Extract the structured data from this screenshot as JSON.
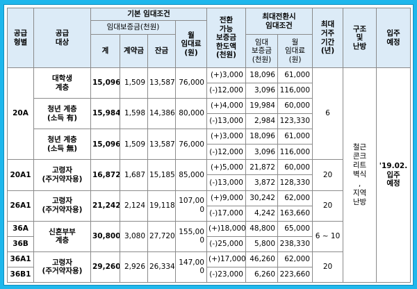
{
  "header": {
    "supply_type": "공급\n형별",
    "supply_target": "공급\n대상",
    "basic_conditions": "기본 임대조건",
    "deposit": "임대보증금(천원)",
    "total": "계",
    "contract": "계약금",
    "balance": "잔금",
    "monthly_rent": "월\n임대료\n(원)",
    "convertible": "전환\n가능\n보증금\n한도액\n(천원)",
    "max_conversion": "최대전환시\n임대조건",
    "conv_deposit": "임대\n보증금\n(천원)",
    "conv_rent": "월\n임대료\n(원)",
    "max_period": "최대\n거주\n기간\n(년)",
    "structure": "구조\n및\n난방",
    "move_in": "입주\n예정"
  },
  "structure_text": "철근\n콘크\n리트\n벽식\n,\n지역\n난방",
  "move_in_text": "'19.02.\n입주\n예정",
  "rows": [
    {
      "type": "20A",
      "target": "대학생\n계층",
      "total": "15,096",
      "contract": "1,509",
      "balance": "13,587",
      "rent": "76,000",
      "c1": "(+)3,000",
      "d1": "18,096",
      "r1": "61,000",
      "c2": "(-)12,000",
      "d2": "3,096",
      "r2": "116,000"
    },
    {
      "type": "",
      "target": "청년 계층\n(소득 有)",
      "total": "15,984",
      "contract": "1,598",
      "balance": "14,386",
      "rent": "80,000",
      "c1": "(+)4,000",
      "d1": "19,984",
      "r1": "60,000",
      "c2": "(-)13,000",
      "d2": "2,984",
      "r2": "123,330"
    },
    {
      "type": "",
      "target": "청년 계층\n(소득 無)",
      "total": "15,096",
      "contract": "1,509",
      "balance": "13,587",
      "rent": "76,000",
      "c1": "(+)3,000",
      "d1": "18,096",
      "r1": "61,000",
      "c2": "(-)12,000",
      "d2": "3,096",
      "r2": "116,000"
    },
    {
      "type": "20A1",
      "target": "고령자\n(주거약자용)",
      "total": "16,872",
      "contract": "1,687",
      "balance": "15,185",
      "rent": "85,000",
      "c1": "(+)5,000",
      "d1": "21,872",
      "r1": "60,000",
      "c2": "(-)13,000",
      "d2": "3,872",
      "r2": "128,330"
    },
    {
      "type": "26A1",
      "target": "고령자\n(주거약자용)",
      "total": "21,242",
      "contract": "2,124",
      "balance": "19,118",
      "rent": "107,00\n0",
      "c1": "(+)9,000",
      "d1": "30,242",
      "r1": "62,000",
      "c2": "(-)17,000",
      "d2": "4,242",
      "r2": "163,660"
    },
    {
      "type": "36A",
      "type2": "36B",
      "target": "신혼부부\n계층",
      "total": "30,800",
      "contract": "3,080",
      "balance": "27,720",
      "rent": "155,00\n0",
      "c1": "(+)18,000",
      "d1": "48,800",
      "r1": "65,000",
      "c2": "(-)25,000",
      "d2": "5,800",
      "r2": "238,330"
    },
    {
      "type": "36A1",
      "type2": "36B1",
      "target": "고령자\n(주거약자용)",
      "total": "29,260",
      "contract": "2,926",
      "balance": "26,334",
      "rent": "147,00\n0",
      "c1": "(+)17,000",
      "d1": "46,260",
      "r1": "62,000",
      "c2": "(-)23,000",
      "d2": "6,260",
      "r2": "223,660"
    }
  ],
  "periods": {
    "g1": "6",
    "g2": "20",
    "g3": "20",
    "g4": "6 ~ 10",
    "g5": "20"
  }
}
